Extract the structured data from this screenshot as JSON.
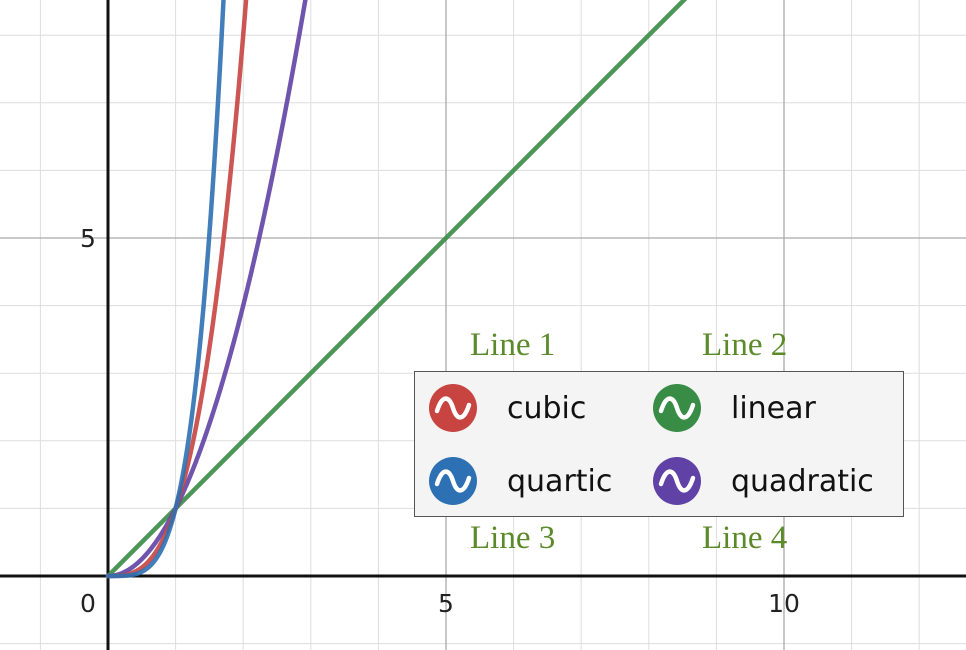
{
  "chart_data": {
    "type": "line",
    "xlim": [
      -2.5,
      12.2
    ],
    "ylim": [
      -1.1,
      9.6
    ],
    "x_ticks": [
      0,
      5,
      10
    ],
    "y_ticks": [
      5
    ],
    "grid": true,
    "series": [
      {
        "name": "cubic",
        "color": "#c74440",
        "function": "x^3"
      },
      {
        "name": "linear",
        "color": "#388c46",
        "function": "x"
      },
      {
        "name": "quartic",
        "color": "#2d70b3",
        "function": "x^4"
      },
      {
        "name": "quadratic",
        "color": "#6042a6",
        "function": "x^2"
      }
    ],
    "legend_position": "lower-right",
    "annotations": [
      "Line 1",
      "Line 2",
      "Line 3",
      "Line 4"
    ]
  },
  "legend": {
    "items": [
      {
        "label": "cubic",
        "color": "#c74440",
        "icon": "wave-icon"
      },
      {
        "label": "linear",
        "color": "#388c46",
        "icon": "wave-icon"
      },
      {
        "label": "quartic",
        "color": "#2d70b3",
        "icon": "wave-icon"
      },
      {
        "label": "quadratic",
        "color": "#6042a6",
        "icon": "wave-icon"
      }
    ]
  },
  "annotations": {
    "line1": "Line 1",
    "line2": "Line 2",
    "line3": "Line 3",
    "line4": "Line 4"
  }
}
